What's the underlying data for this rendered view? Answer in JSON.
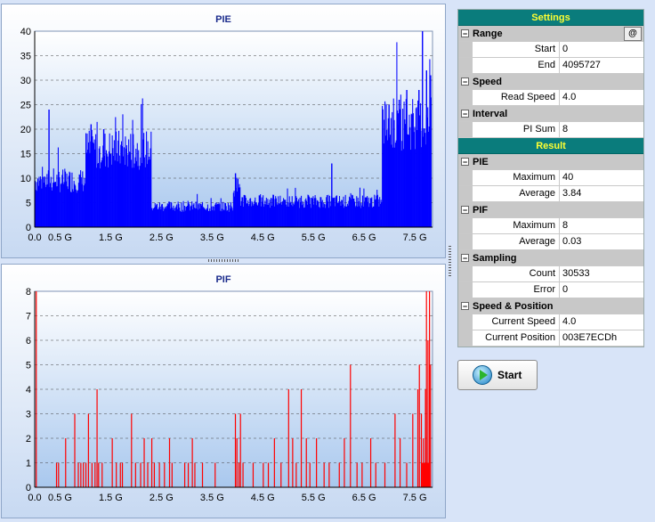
{
  "charts": {
    "pie": {
      "title": "PIE"
    },
    "pif": {
      "title": "PIF"
    }
  },
  "chart_data": [
    {
      "type": "bar",
      "title": "PIE",
      "xlabel": "",
      "ylabel": "",
      "xlim": [
        0,
        7.85
      ],
      "ylim": [
        0,
        40
      ],
      "yticks": [
        0,
        5,
        10,
        15,
        20,
        25,
        30,
        35,
        40
      ],
      "xticks": [
        "0.0",
        "0.5 G",
        "1.5 G",
        "2.5 G",
        "3.5 G",
        "4.5 G",
        "5.5 G",
        "6.5 G",
        "7.5 G"
      ],
      "xtick_values": [
        0,
        0.5,
        1.5,
        2.5,
        3.5,
        4.5,
        5.5,
        6.5,
        7.5
      ],
      "grid": true,
      "color": "#0000ff",
      "segments": [
        {
          "from": 0.0,
          "to": 1.0,
          "level": 9
        },
        {
          "from": 1.0,
          "to": 2.3,
          "level": 15
        },
        {
          "from": 2.3,
          "to": 3.9,
          "level": 4
        },
        {
          "from": 3.9,
          "to": 4.05,
          "level": 8
        },
        {
          "from": 4.05,
          "to": 6.85,
          "level": 5
        },
        {
          "from": 6.85,
          "to": 7.82,
          "level": 20
        }
      ],
      "peaks": [
        [
          0.27,
          24
        ],
        [
          1.1,
          21
        ],
        [
          1.35,
          20
        ],
        [
          1.93,
          19
        ],
        [
          3.95,
          11
        ],
        [
          5.85,
          13
        ],
        [
          6.98,
          25
        ],
        [
          7.18,
          26
        ],
        [
          7.33,
          28
        ],
        [
          7.57,
          28
        ],
        [
          7.64,
          40
        ],
        [
          7.72,
          32
        ],
        [
          7.8,
          31
        ]
      ]
    },
    {
      "type": "bar",
      "title": "PIF",
      "xlabel": "",
      "ylabel": "",
      "xlim": [
        0,
        7.85
      ],
      "ylim": [
        0,
        8
      ],
      "yticks": [
        0,
        1,
        2,
        3,
        4,
        5,
        6,
        7,
        8
      ],
      "xticks": [
        "0.0",
        "0.5 G",
        "1.5 G",
        "2.5 G",
        "3.5 G",
        "4.5 G",
        "5.5 G",
        "6.5 G",
        "7.5 G"
      ],
      "xtick_values": [
        0,
        0.5,
        1.5,
        2.5,
        3.5,
        4.5,
        5.5,
        6.5,
        7.5
      ],
      "grid": true,
      "color": "#ff0000",
      "x": [
        0.02,
        0.42,
        0.46,
        0.6,
        0.78,
        0.85,
        0.9,
        0.95,
        1.0,
        1.05,
        1.12,
        1.18,
        1.22,
        1.25,
        1.32,
        1.52,
        1.6,
        1.68,
        1.72,
        1.9,
        1.98,
        2.08,
        2.15,
        2.22,
        2.3,
        2.35,
        2.45,
        2.55,
        2.65,
        2.7,
        2.95,
        3.02,
        3.1,
        3.15,
        3.3,
        3.55,
        3.95,
        3.98,
        4.02,
        4.05,
        4.1,
        4.3,
        4.5,
        4.6,
        4.72,
        4.85,
        5.0,
        5.08,
        5.15,
        5.25,
        5.35,
        5.42,
        5.55,
        5.7,
        5.8,
        6.0,
        6.1,
        6.22,
        6.35,
        6.45,
        6.62,
        6.72,
        6.9,
        7.1,
        7.2,
        7.33,
        7.45,
        7.55,
        7.58,
        7.62,
        7.66,
        7.7,
        7.72,
        7.75,
        7.78,
        7.8
      ],
      "values": [
        8,
        1,
        1,
        2,
        3,
        1,
        1,
        1,
        1,
        3,
        1,
        1,
        4,
        1,
        1,
        2,
        1,
        1,
        1,
        3,
        1,
        1,
        2,
        1,
        2,
        1,
        1,
        1,
        2,
        1,
        1,
        1,
        2,
        1,
        1,
        1,
        3,
        2,
        1,
        3,
        1,
        1,
        1,
        1,
        2,
        1,
        4,
        2,
        1,
        4,
        2,
        1,
        2,
        1,
        1,
        1,
        2,
        5,
        1,
        1,
        2,
        1,
        1,
        3,
        2,
        1,
        3,
        4,
        5,
        3,
        2,
        4,
        8,
        6,
        8,
        5
      ]
    }
  ],
  "panel": {
    "settings_header": "Settings",
    "range": {
      "label": "Range",
      "start_label": "Start",
      "start": "0",
      "end_label": "End",
      "end": "4095727",
      "at_button": "@"
    },
    "speed": {
      "label": "Speed",
      "read_speed_label": "Read Speed",
      "read_speed": "4.0"
    },
    "interval": {
      "label": "Interval",
      "pi_sum_label": "PI Sum",
      "pi_sum": "8"
    },
    "result_header": "Result",
    "pie": {
      "label": "PIE",
      "maximum_label": "Maximum",
      "maximum": "40",
      "average_label": "Average",
      "average": "3.84"
    },
    "pif": {
      "label": "PIF",
      "maximum_label": "Maximum",
      "maximum": "8",
      "average_label": "Average",
      "average": "0.03"
    },
    "sampling": {
      "label": "Sampling",
      "count_label": "Count",
      "count": "30533",
      "error_label": "Error",
      "error": "0"
    },
    "speed_position": {
      "label": "Speed & Position",
      "current_speed_label": "Current Speed",
      "current_speed": "4.0",
      "current_position_label": "Current Position",
      "current_position": "003E7ECDh"
    },
    "toggle_symbol": "−",
    "start_button": "Start"
  }
}
